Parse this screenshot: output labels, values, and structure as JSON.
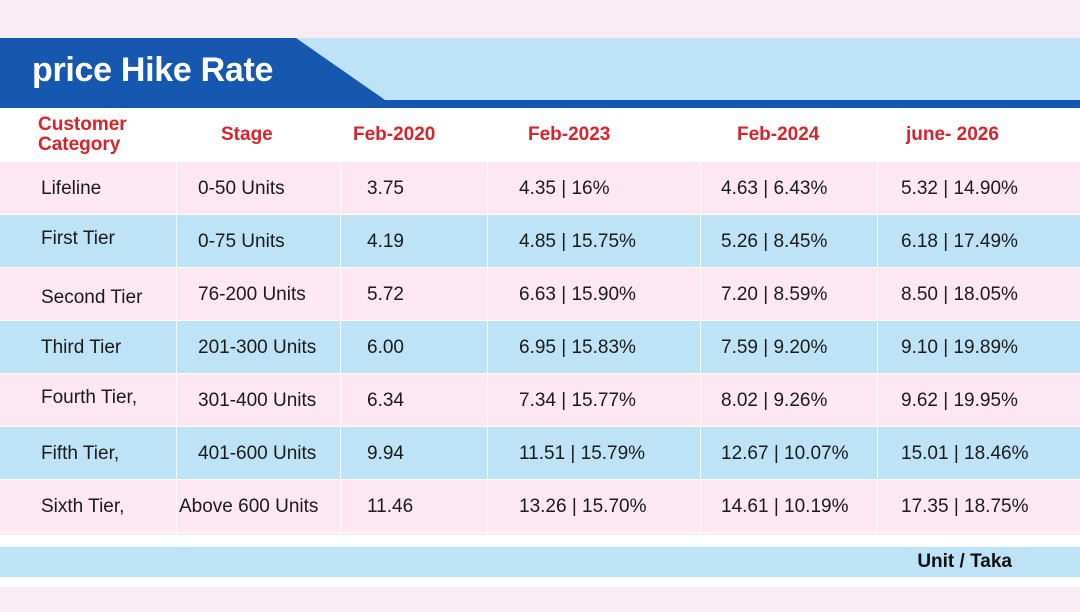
{
  "title": "price Hike Rate",
  "headers": {
    "category": "Customer Category",
    "stage": "Stage",
    "feb2020": "Feb-2020",
    "feb2023": "Feb-2023",
    "feb2024": "Feb-2024",
    "june2026": "june- 2026"
  },
  "rows": [
    {
      "category": "Lifeline",
      "stage": "0-50 Units",
      "feb2020": "3.75",
      "feb2023": "4.35 | 16%",
      "feb2024": "4.63 | 6.43%",
      "june2026": "5.32 | 14.90%"
    },
    {
      "category": "First Tier",
      "stage": "0-75 Units",
      "feb2020": "4.19",
      "feb2023": "4.85 | 15.75%",
      "feb2024": "5.26 | 8.45%",
      "june2026": "6.18 | 17.49%"
    },
    {
      "category": "Second Tier",
      "stage": "76-200 Units",
      "feb2020": "5.72",
      "feb2023": "6.63 | 15.90%",
      "feb2024": "7.20 | 8.59%",
      "june2026": "8.50 | 18.05%"
    },
    {
      "category": "Third Tier",
      "stage": "201-300 Units",
      "feb2020": "6.00",
      "feb2023": "6.95 | 15.83%",
      "feb2024": "7.59 | 9.20%",
      "june2026": "9.10 | 19.89%"
    },
    {
      "category": "Fourth Tier,",
      "stage": "301-400 Units",
      "feb2020": "6.34",
      "feb2023": "7.34 | 15.77%",
      "feb2024": "8.02 | 9.26%",
      "june2026": "9.62 | 19.95%"
    },
    {
      "category": "Fifth Tier,",
      "stage": "401-600 Units",
      "feb2020": "9.94",
      "feb2023": "11.51 | 15.79%",
      "feb2024": "12.67 | 10.07%",
      "june2026": "15.01 | 18.46%"
    },
    {
      "category": "Sixth Tier,",
      "stage": "Above 600 Units",
      "feb2020": "11.46",
      "feb2023": "13.26 | 15.70%",
      "feb2024": "14.61 | 10.19%",
      "june2026": "17.35 | 18.75%"
    }
  ],
  "unit_note": "Unit / Taka",
  "colors": {
    "brand_blue": "#1657b0",
    "band_blue": "#bfe3f6",
    "row_pink": "#fde8f2",
    "header_red": "#d8232a"
  }
}
